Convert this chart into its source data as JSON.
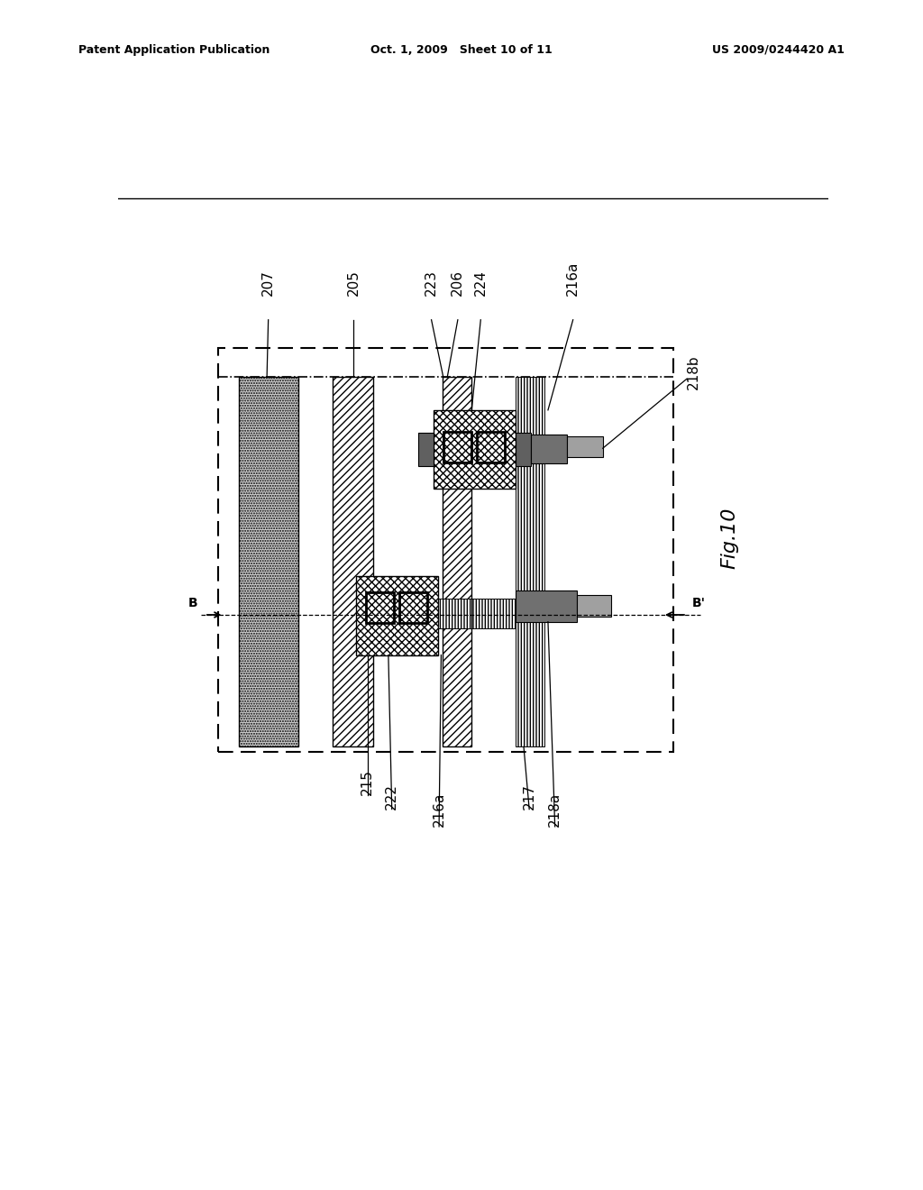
{
  "title_left": "Patent Application Publication",
  "title_center": "Oct. 1, 2009   Sheet 10 of 11",
  "title_right": "US 2009/0244420 A1",
  "fig_label": "Fig.10",
  "bg_color": "#ffffff"
}
